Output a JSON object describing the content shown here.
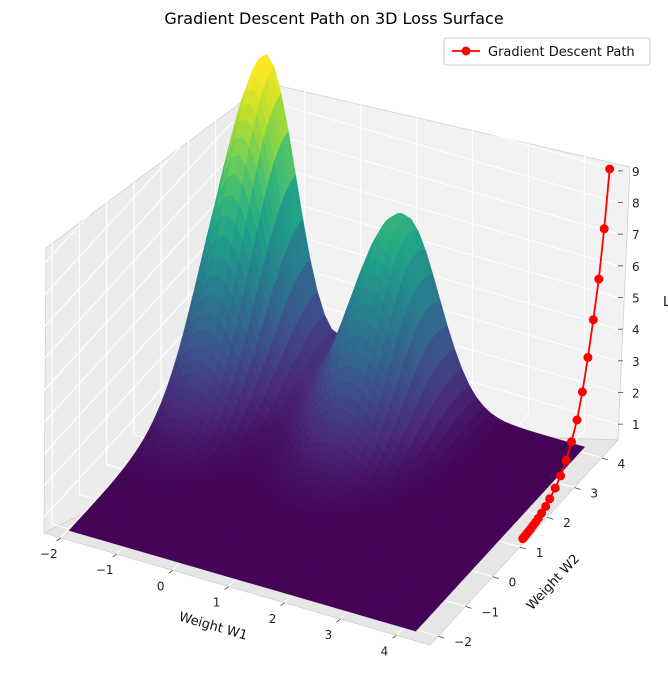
{
  "chart_data": {
    "type": "surface3d",
    "title": "Gradient Descent Path on 3D Loss Surface",
    "xlabel": "Weight W1",
    "ylabel": "Weight W2",
    "zlabel": "L",
    "x_ticks": [
      "−2",
      "−1",
      "0",
      "1",
      "2",
      "3",
      "4"
    ],
    "y_ticks": [
      "−2",
      "−1",
      "0",
      "1",
      "2",
      "3",
      "4"
    ],
    "z_ticks": [
      "1",
      "2",
      "3",
      "4",
      "5",
      "6",
      "7",
      "8",
      "9"
    ],
    "xlim": [
      -2.3,
      4.6
    ],
    "ylim": [
      -2.3,
      4.6
    ],
    "zlim": [
      0.5,
      9.5
    ],
    "legend": {
      "label": "Gradient Descent Path",
      "placement": "top-right"
    },
    "series": [
      {
        "name": "Gradient Descent Path",
        "color": "#ff0000",
        "points": [
          {
            "x": 4.5,
            "y": 4.5,
            "z": 9.1
          },
          {
            "x": 4.5,
            "y": 4.3,
            "z": 7.4
          },
          {
            "x": 4.5,
            "y": 4.1,
            "z": 6.0
          },
          {
            "x": 4.5,
            "y": 3.9,
            "z": 4.9
          },
          {
            "x": 4.5,
            "y": 3.7,
            "z": 3.9
          },
          {
            "x": 4.5,
            "y": 3.5,
            "z": 3.0
          },
          {
            "x": 4.5,
            "y": 3.3,
            "z": 2.3
          },
          {
            "x": 4.5,
            "y": 3.1,
            "z": 1.8
          },
          {
            "x": 4.5,
            "y": 2.9,
            "z": 1.4
          },
          {
            "x": 4.5,
            "y": 2.7,
            "z": 1.1
          },
          {
            "x": 4.5,
            "y": 2.5,
            "z": 0.9
          },
          {
            "x": 4.5,
            "y": 2.3,
            "z": 0.75
          },
          {
            "x": 4.5,
            "y": 2.15,
            "z": 0.65
          },
          {
            "x": 4.5,
            "y": 2.0,
            "z": 0.58
          },
          {
            "x": 4.5,
            "y": 1.88,
            "z": 0.53
          },
          {
            "x": 4.5,
            "y": 1.78,
            "z": 0.5
          },
          {
            "x": 4.5,
            "y": 1.68,
            "z": 0.48
          },
          {
            "x": 4.5,
            "y": 1.6,
            "z": 0.46
          },
          {
            "x": 4.5,
            "y": 1.53,
            "z": 0.45
          },
          {
            "x": 4.5,
            "y": 1.47,
            "z": 0.44
          },
          {
            "x": 4.5,
            "y": 1.42,
            "z": 0.43
          },
          {
            "x": 4.5,
            "y": 1.38,
            "z": 0.43
          },
          {
            "x": 4.5,
            "y": 1.34,
            "z": 0.42
          },
          {
            "x": 4.5,
            "y": 1.31,
            "z": 0.42
          }
        ]
      }
    ],
    "surface": {
      "colormap": "viridis"
    },
    "grid": true
  }
}
